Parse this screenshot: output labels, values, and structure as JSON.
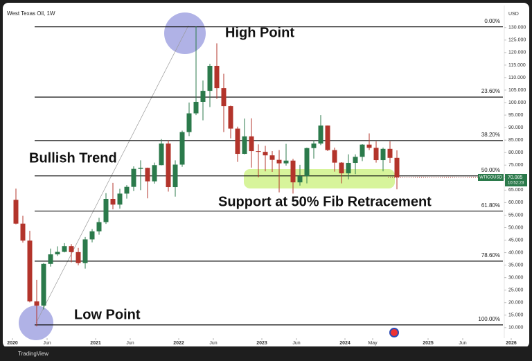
{
  "chart_data": {
    "type": "candlestick",
    "title": "West Texas Oil, 1W",
    "y_unit": "USD",
    "footer": "TradingView",
    "x": [
      "2020-01",
      "2020-02",
      "2020-03",
      "2020-04",
      "2020-05",
      "2020-06",
      "2020-07",
      "2020-08",
      "2020-09",
      "2020-10",
      "2020-11",
      "2020-12",
      "2021-01",
      "2021-02",
      "2021-03",
      "2021-04",
      "2021-05",
      "2021-06",
      "2021-07",
      "2021-08",
      "2021-09",
      "2021-10",
      "2021-11",
      "2021-12",
      "2022-01",
      "2022-02",
      "2022-03",
      "2022-04",
      "2022-05",
      "2022-06",
      "2022-07",
      "2022-08",
      "2022-09",
      "2022-10",
      "2022-11",
      "2022-12",
      "2023-01",
      "2023-02",
      "2023-03",
      "2023-04",
      "2023-05",
      "2023-06",
      "2023-07",
      "2023-08",
      "2023-09",
      "2023-10",
      "2023-11",
      "2023-12",
      "2024-01",
      "2024-02",
      "2024-03",
      "2024-04",
      "2024-05",
      "2024-06",
      "2024-07",
      "2024-08"
    ],
    "open": [
      61.1,
      51.6,
      44.8,
      20.5,
      18.8,
      35.5,
      39.3,
      40.3,
      42.6,
      40.2,
      35.8,
      45.3,
      48.5,
      52.2,
      61.5,
      59.2,
      63.6,
      66.3,
      73.5,
      73.9,
      68.5,
      75.0,
      83.6,
      66.2,
      75.2,
      88.2,
      95.7,
      100.3,
      104.7,
      114.7,
      105.8,
      98.6,
      89.6,
      79.5,
      86.5,
      80.6,
      80.3,
      78.9,
      77.1,
      75.7,
      76.8,
      68.1,
      70.6,
      81.8,
      83.6,
      90.8,
      81.0,
      76.0,
      71.7,
      75.9,
      78.3,
      83.2,
      81.9,
      77.0,
      81.5,
      77.9
    ],
    "high": [
      65.6,
      54.7,
      48.7,
      29.1,
      35.8,
      41.6,
      42.5,
      43.8,
      43.4,
      41.9,
      46.3,
      49.4,
      53.9,
      63.8,
      67.9,
      65.5,
      67.0,
      74.5,
      76.9,
      74.0,
      76.0,
      85.4,
      84.9,
      76.9,
      88.8,
      100.0,
      130.5,
      108.8,
      115.5,
      123.7,
      111.5,
      98.8,
      90.4,
      93.6,
      93.7,
      83.3,
      82.7,
      80.6,
      81.0,
      83.5,
      77.5,
      75.1,
      82.0,
      84.9,
      95.0,
      90.8,
      82.0,
      76.2,
      79.3,
      79.3,
      83.4,
      87.7,
      84.5,
      82.0,
      84.5,
      80.9
    ],
    "low": [
      51.3,
      44.0,
      20.1,
      10.5,
      17.3,
      34.4,
      38.7,
      40.1,
      36.1,
      34.9,
      33.6,
      44.1,
      47.2,
      51.5,
      57.3,
      57.6,
      61.6,
      64.6,
      65.0,
      61.7,
      67.6,
      74.9,
      64.4,
      62.4,
      74.3,
      86.6,
      95.0,
      92.9,
      98.2,
      101.5,
      88.2,
      85.7,
      76.3,
      79.3,
      74.0,
      70.1,
      72.5,
      72.3,
      64.1,
      74.8,
      63.6,
      66.8,
      67.7,
      77.6,
      83.0,
      80.6,
      72.4,
      67.7,
      69.3,
      71.4,
      76.6,
      81.0,
      76.0,
      72.5,
      75.9,
      65.3
    ],
    "close": [
      51.6,
      44.8,
      20.5,
      18.8,
      35.5,
      39.3,
      40.3,
      42.6,
      40.2,
      35.8,
      45.3,
      48.5,
      52.2,
      61.5,
      59.2,
      63.6,
      66.3,
      73.5,
      73.9,
      68.5,
      75.0,
      83.6,
      66.2,
      75.2,
      88.2,
      95.7,
      100.3,
      104.7,
      114.7,
      105.8,
      98.6,
      89.6,
      79.5,
      86.5,
      80.6,
      80.3,
      78.9,
      77.1,
      75.7,
      76.8,
      68.1,
      70.6,
      81.8,
      83.6,
      90.8,
      81.0,
      76.0,
      71.7,
      75.9,
      78.3,
      83.2,
      81.9,
      77.0,
      81.5,
      77.9,
      70.085
    ],
    "up_color": "#2b7a4b",
    "down_color": "#b3342b",
    "xlim": [
      "2019-12",
      "2025-12"
    ],
    "xticks": [
      {
        "value": "2020-01",
        "label": "2020"
      },
      {
        "value": "2020-06",
        "label": "Jun"
      },
      {
        "value": "2021-01",
        "label": "2021"
      },
      {
        "value": "2021-06",
        "label": "Jun"
      },
      {
        "value": "2022-01",
        "label": "2022"
      },
      {
        "value": "2022-06",
        "label": "Jun"
      },
      {
        "value": "2023-01",
        "label": "2023"
      },
      {
        "value": "2023-06",
        "label": "Jun"
      },
      {
        "value": "2024-01",
        "label": "2024"
      },
      {
        "value": "2024-05",
        "label": "May"
      },
      {
        "value": "2025-01",
        "label": "2025"
      },
      {
        "value": "2025-06",
        "label": "Jun"
      },
      {
        "value": "2026-01",
        "label": "2026"
      }
    ],
    "ylim": [
      5.8,
      137.7
    ],
    "yticks": [
      {
        "value": 10,
        "label": "10.000"
      },
      {
        "value": 15,
        "label": "15.000"
      },
      {
        "value": 20,
        "label": "20.000"
      },
      {
        "value": 25,
        "label": "25.000"
      },
      {
        "value": 30,
        "label": "30.000"
      },
      {
        "value": 35,
        "label": "35.000"
      },
      {
        "value": 40,
        "label": "40.000"
      },
      {
        "value": 45,
        "label": "45.000"
      },
      {
        "value": 50,
        "label": "50.000"
      },
      {
        "value": 55,
        "label": "55.000"
      },
      {
        "value": 60,
        "label": "60.000"
      },
      {
        "value": 65,
        "label": "65.000"
      },
      {
        "value": 70,
        "label": "70.000"
      },
      {
        "value": 75,
        "label": "75.000"
      },
      {
        "value": 80,
        "label": "80.000"
      },
      {
        "value": 85,
        "label": "85.000"
      },
      {
        "value": 90,
        "label": "90.000"
      },
      {
        "value": 95,
        "label": "95.000"
      },
      {
        "value": 100,
        "label": "100.000"
      },
      {
        "value": 105,
        "label": "105.000"
      },
      {
        "value": 110,
        "label": "110.000"
      },
      {
        "value": 115,
        "label": "115.000"
      },
      {
        "value": 120,
        "label": "120.000"
      },
      {
        "value": 125,
        "label": "125.000"
      },
      {
        "value": 130,
        "label": "130.000"
      }
    ],
    "fib_levels": [
      {
        "value": 130.3,
        "label": "0.00%"
      },
      {
        "value": 102.2,
        "label": "23.60%"
      },
      {
        "value": 84.8,
        "label": "38.20%"
      },
      {
        "value": 70.7,
        "label": "50.00%"
      },
      {
        "value": 56.6,
        "label": "61.80%"
      },
      {
        "value": 36.6,
        "label": "78.60%"
      },
      {
        "value": 11.1,
        "label": "100.00%"
      }
    ],
    "last_price": {
      "value": 70.085,
      "symbol": "WTICOUSD",
      "countdown": "10:52:23"
    },
    "annotations": [
      "High Point",
      "Bullish Trend",
      "Support at 50% Fib Retracement",
      "Low Point"
    ],
    "grid": false
  }
}
